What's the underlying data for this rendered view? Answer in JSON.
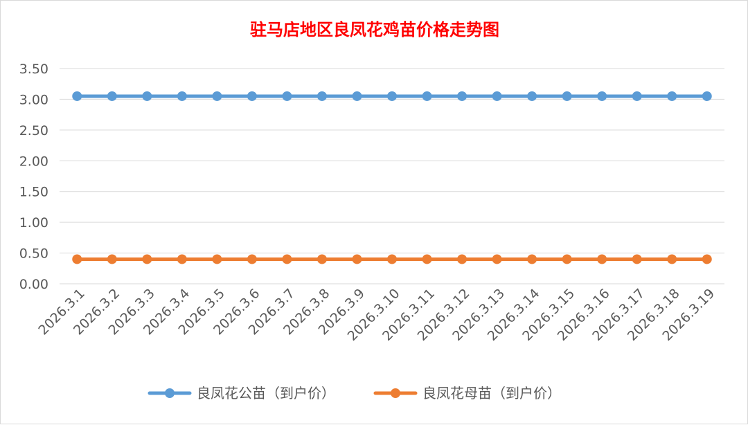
{
  "colors": {
    "title": "#ff0000",
    "grid": "#d9d9d9",
    "text": "#595959",
    "series": [
      "#5b9bd5",
      "#ed7d31"
    ]
  },
  "chart_data": {
    "type": "line",
    "title": "驻马店地区良凤花鸡苗价格走势图",
    "xlabel": "",
    "ylabel": "",
    "categories": [
      "2026.3.1",
      "2026.3.2",
      "2026.3.3",
      "2026.3.4",
      "2026.3.5",
      "2026.3.6",
      "2026.3.7",
      "2026.3.8",
      "2026.3.9",
      "2026.3.10",
      "2026.3.11",
      "2026.3.12",
      "2026.3.13",
      "2026.3.14",
      "2026.3.15",
      "2026.3.16",
      "2026.3.17",
      "2026.3.18",
      "2026.3.19"
    ],
    "yticks": [
      "0.00",
      "0.50",
      "1.00",
      "1.50",
      "2.00",
      "2.50",
      "3.00",
      "3.50"
    ],
    "ylim": [
      0,
      3.5
    ],
    "grid": true,
    "legend_position": "bottom",
    "series": [
      {
        "name": "良凤花公苗（到户价）",
        "values": [
          3.05,
          3.05,
          3.05,
          3.05,
          3.05,
          3.05,
          3.05,
          3.05,
          3.05,
          3.05,
          3.05,
          3.05,
          3.05,
          3.05,
          3.05,
          3.05,
          3.05,
          3.05,
          3.05
        ]
      },
      {
        "name": "良凤花母苗（到户价）",
        "values": [
          0.4,
          0.4,
          0.4,
          0.4,
          0.4,
          0.4,
          0.4,
          0.4,
          0.4,
          0.4,
          0.4,
          0.4,
          0.4,
          0.4,
          0.4,
          0.4,
          0.4,
          0.4,
          0.4
        ]
      }
    ]
  }
}
